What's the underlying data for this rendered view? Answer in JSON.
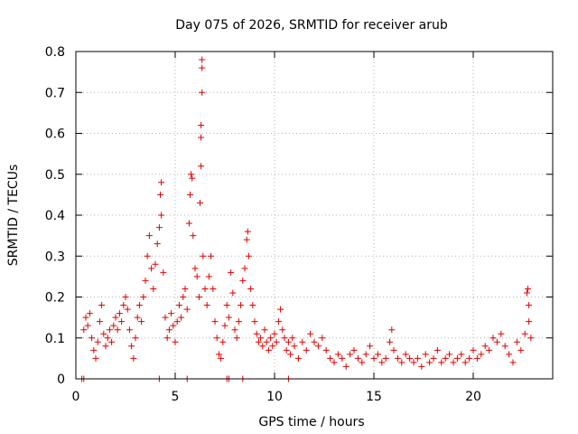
{
  "chart_data": {
    "type": "scatter",
    "title": "Day 075 of 2026, SRMTID for receiver arub",
    "xlabel": "GPS time / hours",
    "ylabel": "SRMTID / TECUs",
    "xlim": [
      0,
      24
    ],
    "ylim": [
      0,
      0.8
    ],
    "xticks": [
      0,
      5,
      10,
      15,
      20
    ],
    "xtick_labels": [
      "0",
      "5",
      "10",
      "15",
      "20"
    ],
    "yticks": [
      0,
      0.1,
      0.2,
      0.3,
      0.4,
      0.5,
      0.6,
      0.7,
      0.8
    ],
    "ytick_labels": [
      "0",
      "0.1",
      "0.2",
      "0.3",
      "0.4",
      "0.5",
      "0.6",
      "0.7",
      "0.8"
    ],
    "grid": true,
    "marker": "plus",
    "marker_color": "#e00000",
    "series": [
      {
        "name": "SRMTID",
        "points": [
          [
            0.3,
            0.0
          ],
          [
            0.4,
            0.0
          ],
          [
            0.4,
            0.12
          ],
          [
            0.5,
            0.15
          ],
          [
            0.6,
            0.13
          ],
          [
            0.7,
            0.16
          ],
          [
            0.8,
            0.1
          ],
          [
            0.9,
            0.07
          ],
          [
            1.0,
            0.05
          ],
          [
            1.1,
            0.09
          ],
          [
            1.2,
            0.14
          ],
          [
            1.3,
            0.18
          ],
          [
            1.4,
            0.11
          ],
          [
            1.5,
            0.08
          ],
          [
            1.6,
            0.1
          ],
          [
            1.7,
            0.12
          ],
          [
            1.8,
            0.09
          ],
          [
            1.9,
            0.13
          ],
          [
            2.0,
            0.15
          ],
          [
            2.1,
            0.12
          ],
          [
            2.2,
            0.16
          ],
          [
            2.3,
            0.14
          ],
          [
            2.4,
            0.18
          ],
          [
            2.5,
            0.2
          ],
          [
            2.6,
            0.17
          ],
          [
            2.7,
            0.12
          ],
          [
            2.8,
            0.08
          ],
          [
            2.9,
            0.05
          ],
          [
            3.0,
            0.1
          ],
          [
            3.1,
            0.15
          ],
          [
            3.2,
            0.18
          ],
          [
            3.3,
            0.14
          ],
          [
            3.4,
            0.2
          ],
          [
            3.5,
            0.24
          ],
          [
            3.6,
            0.3
          ],
          [
            3.7,
            0.35
          ],
          [
            3.8,
            0.27
          ],
          [
            3.9,
            0.22
          ],
          [
            4.0,
            0.28
          ],
          [
            4.1,
            0.33
          ],
          [
            4.2,
            0.37
          ],
          [
            4.2,
            0.0
          ],
          [
            4.25,
            0.45
          ],
          [
            4.3,
            0.48
          ],
          [
            4.3,
            0.4
          ],
          [
            4.4,
            0.26
          ],
          [
            4.5,
            0.15
          ],
          [
            4.6,
            0.1
          ],
          [
            4.7,
            0.12
          ],
          [
            4.8,
            0.16
          ],
          [
            4.9,
            0.13
          ],
          [
            5.0,
            0.09
          ],
          [
            5.1,
            0.14
          ],
          [
            5.2,
            0.18
          ],
          [
            5.3,
            0.15
          ],
          [
            5.4,
            0.2
          ],
          [
            5.5,
            0.22
          ],
          [
            5.6,
            0.0
          ],
          [
            5.6,
            0.17
          ],
          [
            5.7,
            0.38
          ],
          [
            5.75,
            0.45
          ],
          [
            5.8,
            0.5
          ],
          [
            5.85,
            0.49
          ],
          [
            5.9,
            0.35
          ],
          [
            6.0,
            0.27
          ],
          [
            6.1,
            0.25
          ],
          [
            6.2,
            0.2
          ],
          [
            6.25,
            0.43
          ],
          [
            6.3,
            0.52
          ],
          [
            6.3,
            0.59
          ],
          [
            6.3,
            0.62
          ],
          [
            6.35,
            0.7
          ],
          [
            6.35,
            0.76
          ],
          [
            6.35,
            0.78
          ],
          [
            6.4,
            0.3
          ],
          [
            6.5,
            0.22
          ],
          [
            6.6,
            0.18
          ],
          [
            6.7,
            0.25
          ],
          [
            6.8,
            0.3
          ],
          [
            6.9,
            0.22
          ],
          [
            7.0,
            0.14
          ],
          [
            7.1,
            0.1
          ],
          [
            7.2,
            0.06
          ],
          [
            7.3,
            0.05
          ],
          [
            7.4,
            0.09
          ],
          [
            7.5,
            0.13
          ],
          [
            7.6,
            0.0
          ],
          [
            7.6,
            0.18
          ],
          [
            7.7,
            0.0
          ],
          [
            7.7,
            0.15
          ],
          [
            7.8,
            0.26
          ],
          [
            7.9,
            0.21
          ],
          [
            8.0,
            0.12
          ],
          [
            8.1,
            0.1
          ],
          [
            8.2,
            0.14
          ],
          [
            8.3,
            0.18
          ],
          [
            8.4,
            0.0
          ],
          [
            8.4,
            0.24
          ],
          [
            8.5,
            0.27
          ],
          [
            8.6,
            0.34
          ],
          [
            8.65,
            0.36
          ],
          [
            8.7,
            0.3
          ],
          [
            8.8,
            0.22
          ],
          [
            8.9,
            0.18
          ],
          [
            9.0,
            0.14
          ],
          [
            9.1,
            0.11
          ],
          [
            9.2,
            0.09
          ],
          [
            9.3,
            0.1
          ],
          [
            9.4,
            0.08
          ],
          [
            9.5,
            0.12
          ],
          [
            9.6,
            0.09
          ],
          [
            9.7,
            0.07
          ],
          [
            9.8,
            0.1
          ],
          [
            9.9,
            0.08
          ],
          [
            10.0,
            0.11
          ],
          [
            10.1,
            0.09
          ],
          [
            10.2,
            0.14
          ],
          [
            10.3,
            0.17
          ],
          [
            10.4,
            0.12
          ],
          [
            10.5,
            0.1
          ],
          [
            10.6,
            0.07
          ],
          [
            10.7,
            0.0
          ],
          [
            10.7,
            0.09
          ],
          [
            10.8,
            0.06
          ],
          [
            10.9,
            0.1
          ],
          [
            11.0,
            0.08
          ],
          [
            11.2,
            0.05
          ],
          [
            11.4,
            0.09
          ],
          [
            11.6,
            0.07
          ],
          [
            11.8,
            0.11
          ],
          [
            12.0,
            0.09
          ],
          [
            12.2,
            0.08
          ],
          [
            12.4,
            0.1
          ],
          [
            12.6,
            0.07
          ],
          [
            12.8,
            0.05
          ],
          [
            13.0,
            0.04
          ],
          [
            13.2,
            0.06
          ],
          [
            13.4,
            0.05
          ],
          [
            13.6,
            0.03
          ],
          [
            13.8,
            0.06
          ],
          [
            14.0,
            0.07
          ],
          [
            14.2,
            0.05
          ],
          [
            14.4,
            0.04
          ],
          [
            14.6,
            0.06
          ],
          [
            14.8,
            0.08
          ],
          [
            15.0,
            0.05
          ],
          [
            15.2,
            0.06
          ],
          [
            15.4,
            0.04
          ],
          [
            15.6,
            0.05
          ],
          [
            15.8,
            0.09
          ],
          [
            15.9,
            0.12
          ],
          [
            16.0,
            0.07
          ],
          [
            16.2,
            0.05
          ],
          [
            16.4,
            0.04
          ],
          [
            16.6,
            0.06
          ],
          [
            16.8,
            0.05
          ],
          [
            17.0,
            0.04
          ],
          [
            17.2,
            0.05
          ],
          [
            17.4,
            0.03
          ],
          [
            17.6,
            0.06
          ],
          [
            17.8,
            0.04
          ],
          [
            18.0,
            0.05
          ],
          [
            18.2,
            0.07
          ],
          [
            18.4,
            0.04
          ],
          [
            18.6,
            0.05
          ],
          [
            18.8,
            0.06
          ],
          [
            19.0,
            0.04
          ],
          [
            19.2,
            0.05
          ],
          [
            19.4,
            0.06
          ],
          [
            19.6,
            0.04
          ],
          [
            19.8,
            0.05
          ],
          [
            20.0,
            0.07
          ],
          [
            20.2,
            0.05
          ],
          [
            20.4,
            0.06
          ],
          [
            20.6,
            0.08
          ],
          [
            20.8,
            0.07
          ],
          [
            21.0,
            0.1
          ],
          [
            21.2,
            0.09
          ],
          [
            21.4,
            0.11
          ],
          [
            21.6,
            0.08
          ],
          [
            21.8,
            0.06
          ],
          [
            22.0,
            0.04
          ],
          [
            22.2,
            0.09
          ],
          [
            22.4,
            0.07
          ],
          [
            22.6,
            0.11
          ],
          [
            22.7,
            0.21
          ],
          [
            22.75,
            0.22
          ],
          [
            22.8,
            0.18
          ],
          [
            22.8,
            0.14
          ],
          [
            22.9,
            0.1
          ]
        ]
      }
    ]
  }
}
